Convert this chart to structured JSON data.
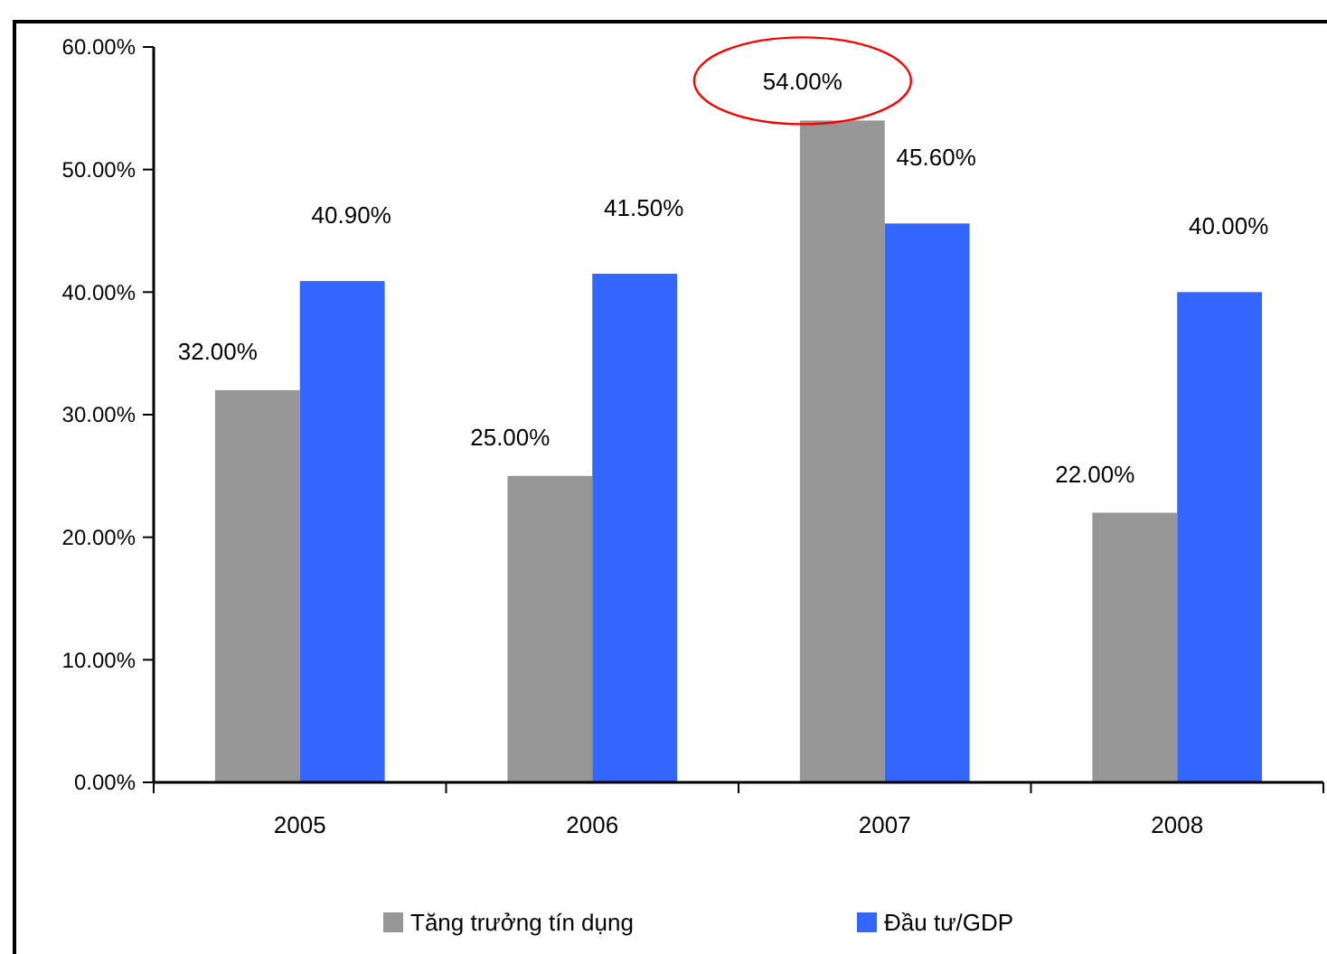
{
  "chart_data": {
    "type": "bar",
    "categories": [
      "2005",
      "2006",
      "2007",
      "2008"
    ],
    "series": [
      {
        "name": "Tăng trưởng tín dụng",
        "color": "#969696",
        "values": [
          32,
          25,
          54,
          22
        ],
        "value_labels": [
          "32.00%",
          "25.00%",
          "54.00%",
          "22.00%"
        ]
      },
      {
        "name": "Đầu tư/GDP",
        "color": "#3366ff",
        "values": [
          40.9,
          41.5,
          45.6,
          40
        ],
        "value_labels": [
          "40.90%",
          "41.50%",
          "45.60%",
          "40.00%"
        ]
      }
    ],
    "ylim": [
      0,
      60
    ],
    "yticks": [
      {
        "value": 0,
        "label": "0.00%"
      },
      {
        "value": 10,
        "label": "10.00%"
      },
      {
        "value": 20,
        "label": "20.00%"
      },
      {
        "value": 30,
        "label": "30.00%"
      },
      {
        "value": 40,
        "label": "40.00%"
      },
      {
        "value": 50,
        "label": "50.00%"
      },
      {
        "value": 60,
        "label": "60.00%"
      }
    ],
    "grid": false,
    "legend": "bottom"
  }
}
